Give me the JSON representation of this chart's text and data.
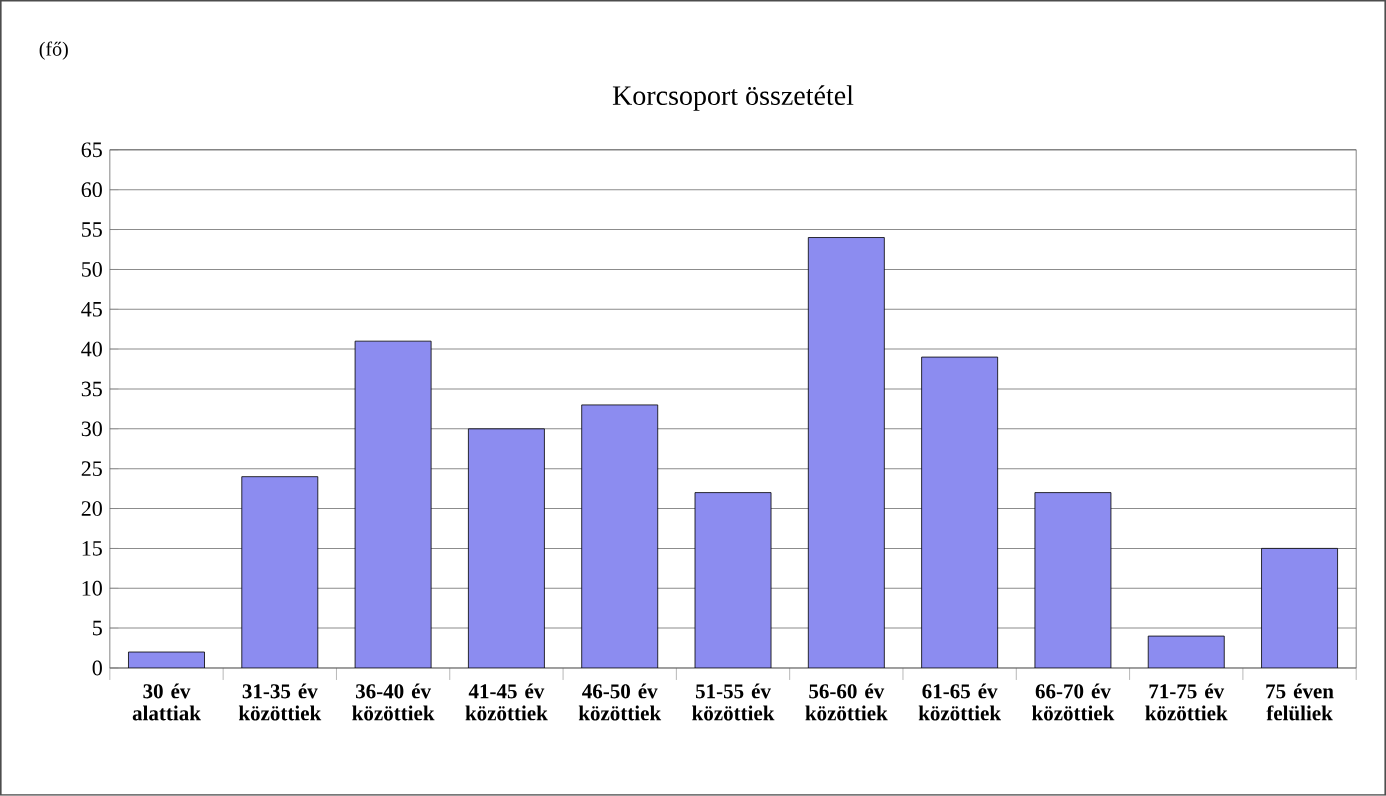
{
  "chart_data": {
    "type": "bar",
    "title": "Korcsoport összetétel",
    "ylabel": "(fő)",
    "categories": [
      "30 év alattiak",
      "31-35 év közöttiek",
      "36-40 év közöttiek",
      "41-45 év közöttiek",
      "46-50 év közöttiek",
      "51-55 év közöttiek",
      "56-60 év közöttiek",
      "61-65 év közöttiek",
      "66-70 év közöttiek",
      "71-75 év közöttiek",
      "75 éven felüliek"
    ],
    "values": [
      2,
      24,
      41,
      30,
      33,
      22,
      54,
      39,
      22,
      4,
      15
    ],
    "color": "#8c8cf0",
    "ylim": [
      0,
      65
    ],
    "yticks": [
      0,
      5,
      10,
      15,
      20,
      25,
      30,
      35,
      40,
      45,
      50,
      55,
      60,
      65
    ],
    "grid": "y"
  }
}
